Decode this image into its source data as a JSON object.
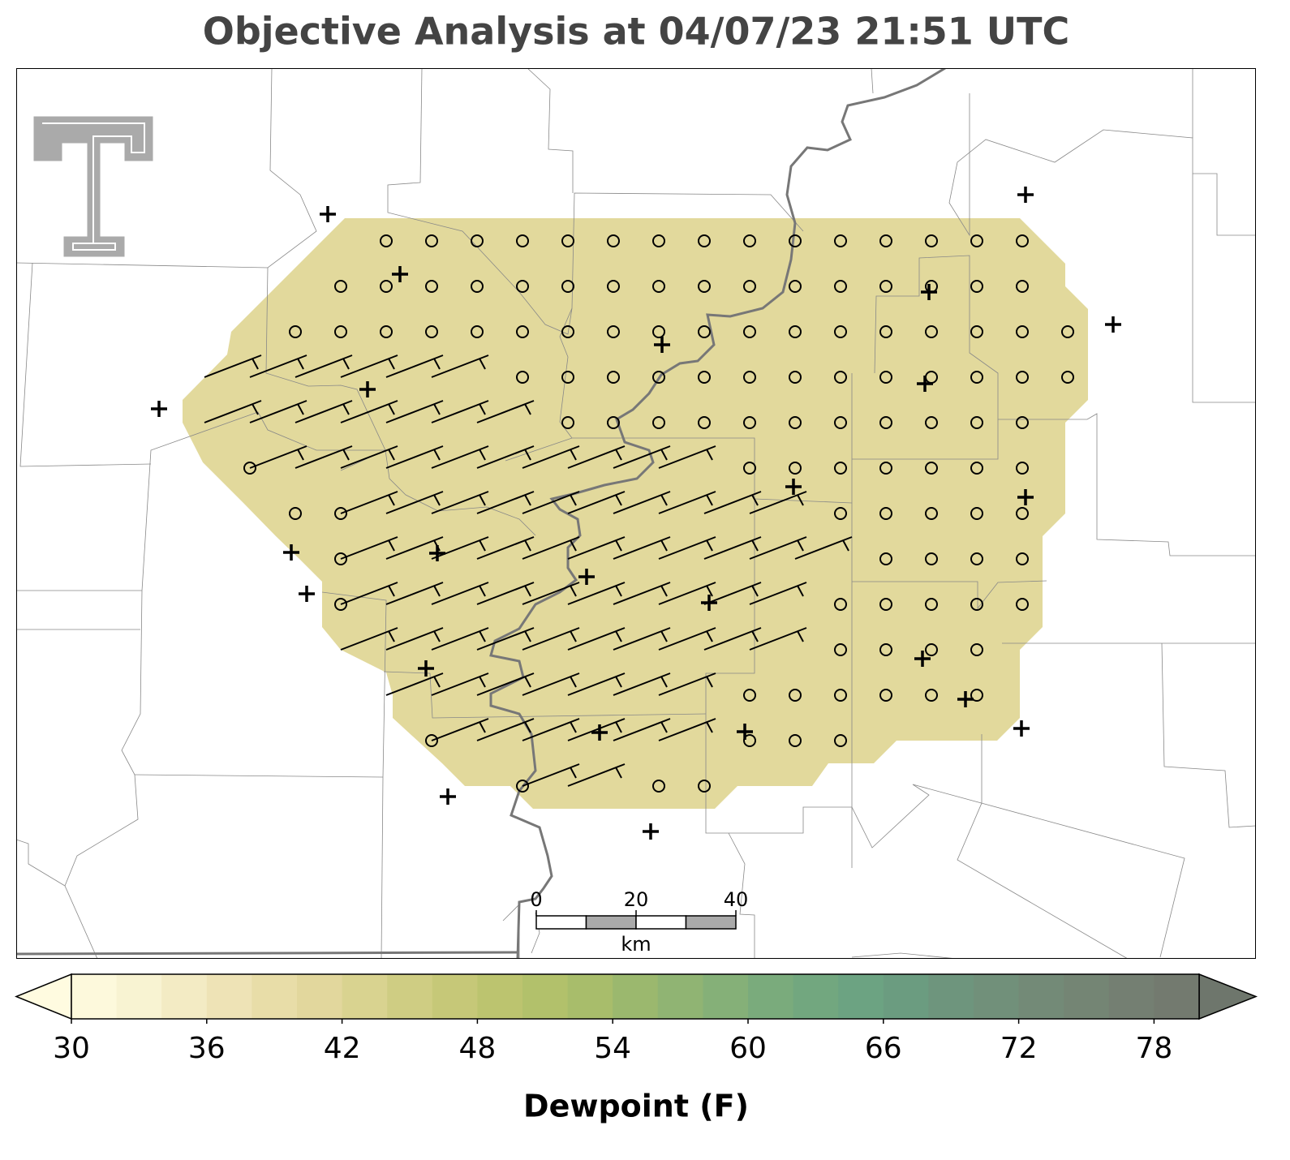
{
  "title": "Objective Analysis at 04/07/23 21:51 UTC",
  "scale_bar": {
    "ticks": [
      0,
      20,
      40
    ],
    "unit": "km"
  },
  "colorbar": {
    "label": "Dewpoint (F)",
    "lim": [
      30,
      80
    ],
    "ticks": [
      30,
      36,
      42,
      48,
      54,
      60,
      66,
      72,
      78
    ],
    "colors": [
      "#fdf9dc",
      "#f8f3d2",
      "#f3ebc4",
      "#eee3b6",
      "#e8dda8",
      "#e2d79d",
      "#d9d390",
      "#cfcd83",
      "#c6c878",
      "#bcc46f",
      "#b2c16b",
      "#a8bd6b",
      "#9bb86e",
      "#90b473",
      "#85b078",
      "#7aab7c",
      "#72a77f",
      "#6ca382",
      "#6b9c80",
      "#6e957d",
      "#71907a",
      "#738a77",
      "#748574",
      "#747f72",
      "#737a6f"
    ],
    "under_color": "#fffbe0",
    "over_color": "#6e766c"
  }
}
